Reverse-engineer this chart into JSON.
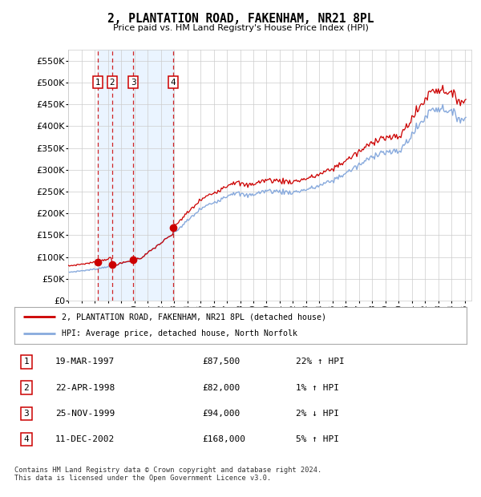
{
  "title": "2, PLANTATION ROAD, FAKENHAM, NR21 8PL",
  "subtitle": "Price paid vs. HM Land Registry's House Price Index (HPI)",
  "legend_line1": "2, PLANTATION ROAD, FAKENHAM, NR21 8PL (detached house)",
  "legend_line2": "HPI: Average price, detached house, North Norfolk",
  "footer": "Contains HM Land Registry data © Crown copyright and database right 2024.\nThis data is licensed under the Open Government Licence v3.0.",
  "transactions": [
    {
      "num": 1,
      "date": "19-MAR-1997",
      "price": 87500,
      "pct": "22%",
      "dir": "↑"
    },
    {
      "num": 2,
      "date": "22-APR-1998",
      "price": 82000,
      "pct": "1%",
      "dir": "↑"
    },
    {
      "num": 3,
      "date": "25-NOV-1999",
      "price": 94000,
      "pct": "2%",
      "dir": "↓"
    },
    {
      "num": 4,
      "date": "11-DEC-2002",
      "price": 168000,
      "pct": "5%",
      "dir": "↑"
    }
  ],
  "transaction_dates_decimal": [
    1997.21,
    1998.31,
    1999.9,
    2002.94
  ],
  "transaction_prices": [
    87500,
    82000,
    94000,
    168000
  ],
  "price_line_color": "#cc0000",
  "hpi_line_color": "#88aadd",
  "transaction_marker_color": "#cc0000",
  "transaction_box_color": "#cc0000",
  "vline_color": "#cc0000",
  "shade_color": "#ddeeff",
  "ylim": [
    0,
    575000
  ],
  "yticks": [
    0,
    50000,
    100000,
    150000,
    200000,
    250000,
    300000,
    350000,
    400000,
    450000,
    500000,
    550000
  ],
  "background_color": "#ffffff",
  "grid_color": "#cccccc",
  "xstart": 1995.0,
  "xend": 2025.5
}
